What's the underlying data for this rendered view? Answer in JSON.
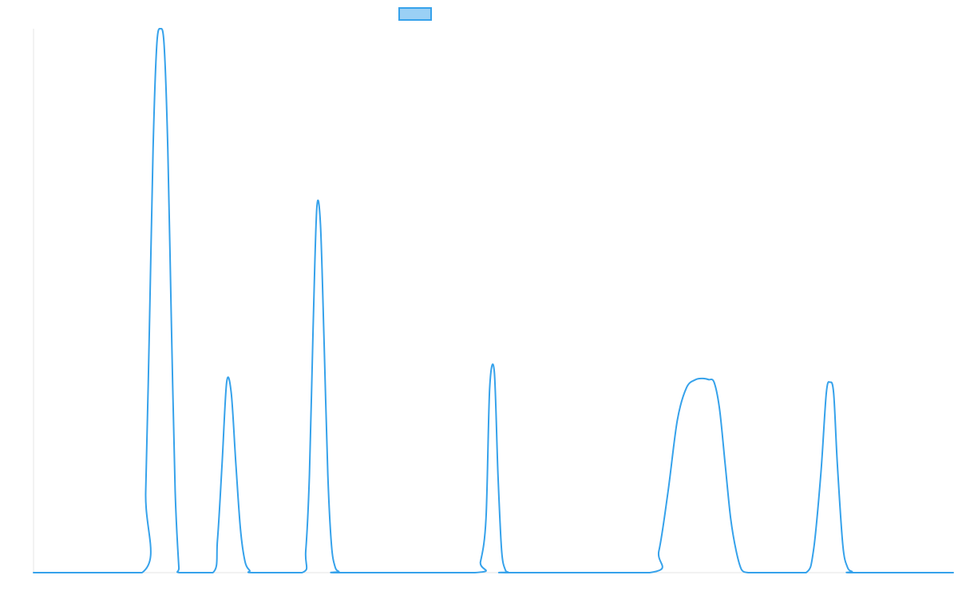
{
  "chart_data": {
    "type": "line",
    "title": "",
    "xlabel": "",
    "ylabel": "",
    "grid": false,
    "legend_position": "top",
    "xlim": [
      0,
      100
    ],
    "ylim": [
      0,
      100
    ],
    "series": [
      {
        "color": "#36a2eb",
        "fill_color": "#9ad0f5",
        "x": [
          0,
          11.8,
          12.2,
          12.6,
          13.0,
          13.4,
          13.8,
          14.2,
          14.6,
          15.0,
          15.4,
          15.8,
          15.9,
          19.5,
          20.0,
          20.5,
          21.0,
          21.5,
          22.0,
          22.5,
          23.0,
          23.5,
          23.8,
          29.2,
          29.6,
          30.0,
          30.4,
          30.8,
          31.2,
          31.6,
          32.0,
          32.4,
          32.8,
          33.2,
          33.4,
          48.0,
          48.6,
          49.2,
          49.6,
          50.1,
          50.5,
          50.9,
          51.3,
          51.6,
          51.7,
          67.0,
          68.0,
          69.0,
          70.0,
          71.0,
          72.0,
          72.8,
          73.4,
          74.0,
          74.6,
          75.2,
          75.8,
          76.4,
          77.0,
          77.7,
          78.6,
          79.3,
          80.0,
          81.4,
          84.0,
          84.8,
          85.6,
          86.2,
          86.6,
          87.0,
          87.4,
          88.0,
          88.5,
          89.0,
          89.2,
          100
        ],
        "values": [
          0,
          0,
          15,
          45,
          78,
          97,
          100,
          97,
          78,
          45,
          15,
          1,
          0,
          0,
          6,
          20,
          35,
          33,
          20,
          8,
          2,
          0.4,
          0,
          0,
          4,
          18,
          45,
          67,
          64,
          42,
          18,
          5,
          1,
          0.2,
          0,
          0,
          2,
          10,
          34,
          37,
          18,
          4,
          0.5,
          0.1,
          0,
          0,
          4,
          15,
          28,
          34,
          35.5,
          35.7,
          35.5,
          35,
          30,
          20,
          10,
          4,
          0.5,
          0,
          0,
          0,
          0,
          0,
          0,
          4,
          18,
          33,
          35,
          33,
          20,
          5,
          1,
          0.2,
          0,
          0
        ]
      }
    ]
  }
}
